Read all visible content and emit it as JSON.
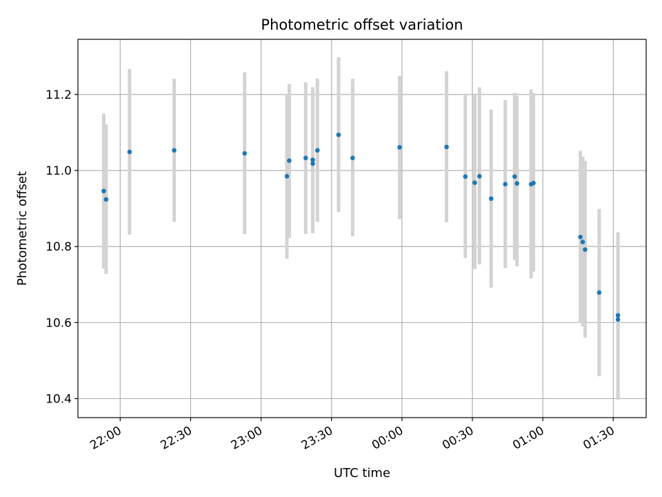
{
  "chart_data": {
    "type": "scatter",
    "title": "Photometric offset variation",
    "xlabel": "UTC time",
    "ylabel": "Photometric offset",
    "x_unit": "UTC time of night (hh:mm, after 24:00 = next day)",
    "xlim": [
      "21:42",
      "25:44"
    ],
    "ylim": [
      10.35,
      11.345
    ],
    "x_ticks": [
      "22:00",
      "22:30",
      "23:00",
      "23:30",
      "00:00",
      "00:30",
      "01:00",
      "01:30"
    ],
    "y_ticks": [
      "10.4",
      "10.6",
      "10.8",
      "11.0",
      "11.2"
    ],
    "grid": true,
    "point_color": "#1f77b4",
    "errorbar_color": "#d3d3d3",
    "series": [
      {
        "points": [
          {
            "t": "21:53",
            "y": 10.946,
            "lo": 10.742,
            "hi": 11.15
          },
          {
            "t": "21:54",
            "y": 10.924,
            "lo": 10.728,
            "hi": 11.121
          },
          {
            "t": "22:04",
            "y": 11.049,
            "lo": 10.831,
            "hi": 11.267
          },
          {
            "t": "22:23",
            "y": 11.053,
            "lo": 10.865,
            "hi": 11.241
          },
          {
            "t": "22:53",
            "y": 11.045,
            "lo": 10.833,
            "hi": 11.258
          },
          {
            "t": "23:11",
            "y": 10.985,
            "lo": 10.768,
            "hi": 11.201
          },
          {
            "t": "23:12",
            "y": 11.026,
            "lo": 10.823,
            "hi": 11.228
          },
          {
            "t": "23:19",
            "y": 11.033,
            "lo": 10.833,
            "hi": 11.232
          },
          {
            "t": "23:22",
            "y": 11.018,
            "lo": 10.835,
            "hi": 11.219
          },
          {
            "t": "23:22",
            "y": 11.028,
            "lo": 10.845,
            "hi": 11.208
          },
          {
            "t": "23:24",
            "y": 11.053,
            "lo": 10.865,
            "hi": 11.242
          },
          {
            "t": "23:33",
            "y": 11.094,
            "lo": 10.891,
            "hi": 11.298
          },
          {
            "t": "23:39",
            "y": 11.033,
            "lo": 10.827,
            "hi": 11.241
          },
          {
            "t": "23:59",
            "y": 11.061,
            "lo": 10.872,
            "hi": 11.249
          },
          {
            "t": "24:19",
            "y": 11.062,
            "lo": 10.864,
            "hi": 11.261
          },
          {
            "t": "24:27",
            "y": 10.984,
            "lo": 10.77,
            "hi": 11.198
          },
          {
            "t": "24:31",
            "y": 10.968,
            "lo": 10.741,
            "hi": 11.198
          },
          {
            "t": "24:33",
            "y": 10.985,
            "lo": 10.753,
            "hi": 11.219
          },
          {
            "t": "24:38",
            "y": 10.926,
            "lo": 10.692,
            "hi": 11.16
          },
          {
            "t": "24:44",
            "y": 10.964,
            "lo": 10.743,
            "hi": 11.185
          },
          {
            "t": "24:48",
            "y": 10.984,
            "lo": 10.765,
            "hi": 11.204
          },
          {
            "t": "24:49",
            "y": 10.966,
            "lo": 10.748,
            "hi": 11.196
          },
          {
            "t": "24:55",
            "y": 10.964,
            "lo": 10.716,
            "hi": 11.213
          },
          {
            "t": "24:56",
            "y": 10.967,
            "lo": 10.734,
            "hi": 11.204
          },
          {
            "t": "25:16",
            "y": 10.825,
            "lo": 10.599,
            "hi": 11.052
          },
          {
            "t": "25:17",
            "y": 10.812,
            "lo": 10.59,
            "hi": 11.036
          },
          {
            "t": "25:18",
            "y": 10.792,
            "lo": 10.56,
            "hi": 11.025
          },
          {
            "t": "25:24",
            "y": 10.679,
            "lo": 10.459,
            "hi": 10.899
          },
          {
            "t": "25:32",
            "y": 10.608,
            "lo": 10.397,
            "hi": 10.819
          },
          {
            "t": "25:32",
            "y": 10.619,
            "lo": 10.4,
            "hi": 10.837
          }
        ]
      }
    ]
  }
}
